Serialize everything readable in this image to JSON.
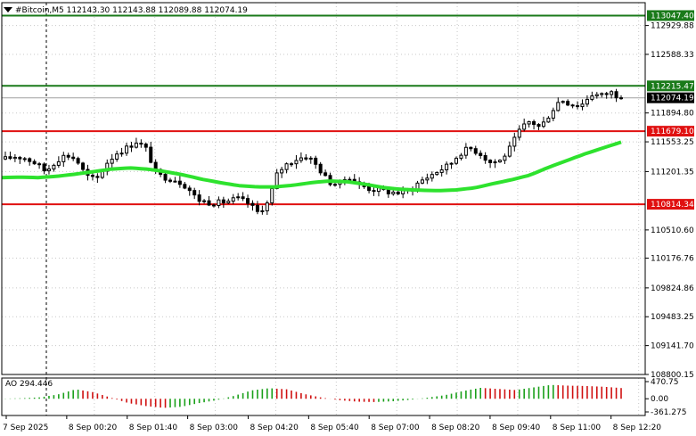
{
  "header": {
    "title": "#Bitcoin,M5  112143.30 112143.88 112089.88 112074.19",
    "indicator_label": "AO 294.446"
  },
  "colors": {
    "bull": "#000000",
    "bear": "#000000",
    "ma": "#2ee22e",
    "resistance": "#1a7a1a",
    "support": "#e01010",
    "grid": "#c8c8c8",
    "ao_up": "#1aa01a",
    "ao_down": "#d01010"
  },
  "chart_data": [
    {
      "type": "candlestick",
      "symbol": "#Bitcoin",
      "timeframe": "M5",
      "ohlc_header": {
        "open": 112143.3,
        "high": 112143.88,
        "low": 112089.88,
        "close": 112074.19
      },
      "ylim": [
        108800,
        113200
      ],
      "y_ticks": [
        112929.88,
        112588.33,
        111894.8,
        111553.25,
        111201.35,
        110510.6,
        110176.76,
        109824.86,
        109483.25,
        109141.7,
        108800.15
      ],
      "x_tick_labels": [
        "7 Sep 2025",
        "8 Sep 00:20",
        "8 Sep 01:40",
        "8 Sep 03:00",
        "8 Sep 04:20",
        "8 Sep 05:40",
        "8 Sep 07:00",
        "8 Sep 08:20",
        "8 Sep 09:40",
        "8 Sep 11:00",
        "8 Sep 12:20"
      ],
      "levels": [
        {
          "value": 113047.4,
          "label": "113047.40",
          "kind": "resistance"
        },
        {
          "value": 112215.47,
          "label": "112215.47",
          "kind": "resistance"
        },
        {
          "value": 111679.1,
          "label": "111679.10",
          "kind": "support"
        },
        {
          "value": 110814.34,
          "label": "110814.34",
          "kind": "support"
        }
      ],
      "price_tag": {
        "value": 112074.19,
        "label": "112074.19"
      },
      "candle_anchors": [
        111350,
        111380,
        111360,
        111300,
        111200,
        111330,
        111400,
        111350,
        111150,
        111100,
        111300,
        111420,
        111480,
        111560,
        111460,
        111160,
        111130,
        111100,
        111020,
        110870,
        110840,
        110830,
        110850,
        110880,
        110830,
        110720,
        110830,
        111200,
        111300,
        111360,
        111380,
        111250,
        111080,
        111050,
        111150,
        111050,
        111000,
        110980,
        110960,
        110950,
        110970,
        111080,
        111150,
        111220,
        111280,
        111420,
        111480,
        111420,
        111310,
        111330,
        111480,
        111700,
        111800,
        111720,
        111900,
        112060,
        112000,
        111980,
        112120,
        112100,
        112140,
        112074
      ],
      "ma_anchors": [
        111130,
        111135,
        111130,
        111145,
        111170,
        111200,
        111230,
        111245,
        111230,
        111200,
        111160,
        111110,
        111070,
        111035,
        111020,
        111020,
        111040,
        111070,
        111090,
        111080,
        111050,
        111010,
        110990,
        110980,
        110975,
        110985,
        111010,
        111060,
        111105,
        111160,
        111250,
        111330,
        111410,
        111480,
        111550
      ],
      "ao_anchors": [
        5,
        15,
        40,
        120,
        260,
        180,
        30,
        -120,
        -200,
        -250,
        -220,
        -120,
        -40,
        80,
        230,
        290,
        260,
        130,
        30,
        -40,
        -80,
        -90,
        -70,
        -30,
        30,
        100,
        210,
        300,
        270,
        240,
        310,
        380,
        360,
        350,
        330,
        295
      ],
      "indicator": {
        "name": "AO",
        "value": 294.446,
        "ticks": [
          {
            "value": 470.75,
            "label": "470.75"
          },
          {
            "value": 0,
            "label": "0.00"
          },
          {
            "value": -361.275,
            "label": "-361.275"
          }
        ]
      }
    }
  ]
}
